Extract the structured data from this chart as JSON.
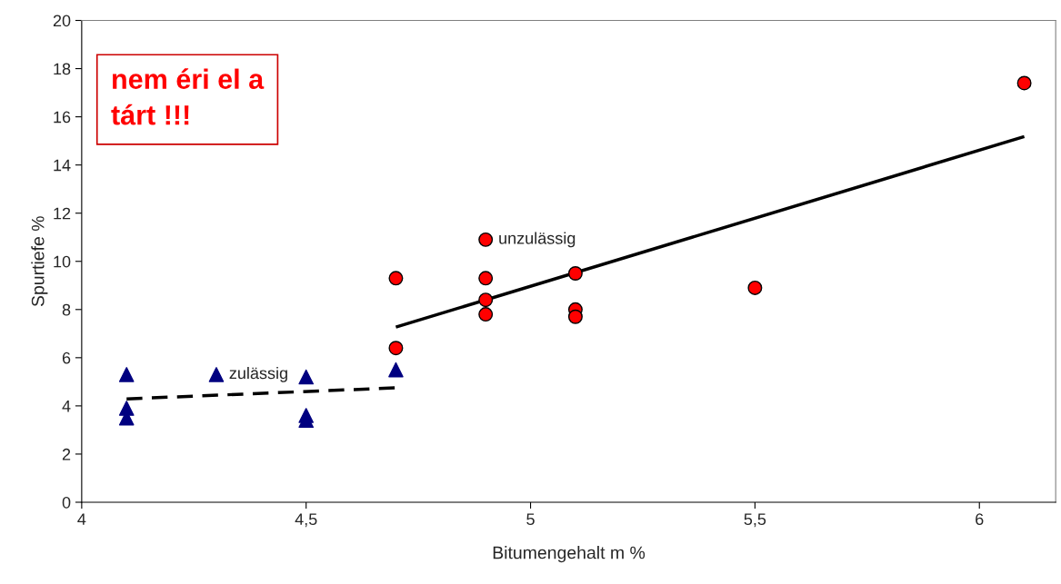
{
  "chart_data": {
    "type": "scatter",
    "xlabel": "Bitumengehalt m %",
    "ylabel": "Spurtiefe %",
    "xlim": [
      4,
      6.17
    ],
    "xticks": [
      4,
      {
        "value": 4.5,
        "label": "4,5"
      },
      5,
      {
        "value": 5.5,
        "label": "5,5"
      },
      6
    ],
    "ylim": [
      0,
      20
    ],
    "yticks": [
      0,
      2,
      4,
      6,
      8,
      10,
      12,
      14,
      16,
      18,
      20
    ],
    "grid": false,
    "legend": false,
    "series": [
      {
        "color": "#000080",
        "marker": "triangle",
        "x": [
          4.1,
          4.1,
          4.1,
          4.3,
          4.5,
          4.5,
          4.5,
          4.7
        ],
        "values": [
          5.3,
          3.9,
          3.5,
          5.3,
          5.2,
          3.6,
          3.4,
          5.5
        ]
      },
      {
        "color": "#ff0000",
        "marker": "circle",
        "x": [
          4.7,
          4.7,
          4.9,
          4.9,
          4.9,
          4.9,
          5.1,
          5.1,
          5.1,
          5.5,
          6.1
        ],
        "values": [
          9.3,
          6.4,
          10.9,
          9.3,
          8.4,
          7.8,
          9.5,
          8.0,
          7.7,
          8.9,
          17.4
        ]
      },
      {
        "type": "line",
        "color": "#000000",
        "marker": "none",
        "line_style": "dashed",
        "x": [
          4.1,
          4.7
        ],
        "values": [
          4.29,
          4.75
        ]
      },
      {
        "type": "line",
        "color": "#000000",
        "marker": "none",
        "line_style": "solid",
        "x": [
          4.7,
          6.1
        ],
        "values": [
          7.27,
          15.18
        ]
      }
    ],
    "annotations": [
      {
        "text": "zulässig",
        "x": 4.3,
        "y": 5.3
      },
      {
        "text": "unzulässig",
        "x": 4.9,
        "y": 10.9
      },
      "nem éri el a\ntárt !!!"
    ]
  }
}
